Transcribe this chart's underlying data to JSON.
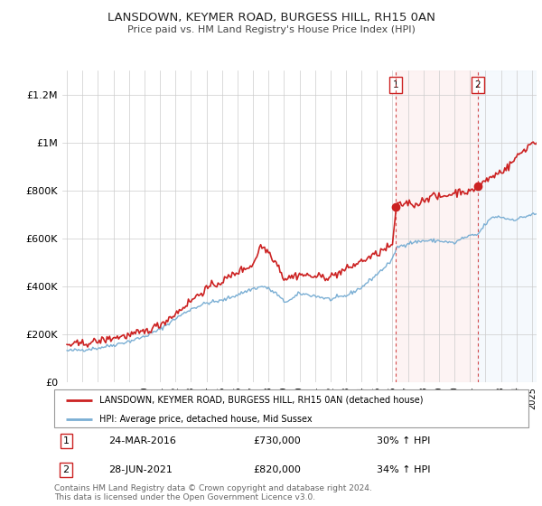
{
  "title": "LANSDOWN, KEYMER ROAD, BURGESS HILL, RH15 0AN",
  "subtitle": "Price paid vs. HM Land Registry's House Price Index (HPI)",
  "legend_line1": "LANSDOWN, KEYMER ROAD, BURGESS HILL, RH15 0AN (detached house)",
  "legend_line2": "HPI: Average price, detached house, Mid Sussex",
  "annotation1": {
    "label": "1",
    "date": "24-MAR-2016",
    "price": "£730,000",
    "pct": "30% ↑ HPI",
    "x_year": 2016.23,
    "y": 730000
  },
  "annotation2": {
    "label": "2",
    "date": "28-JUN-2021",
    "price": "£820,000",
    "pct": "34% ↑ HPI",
    "x_year": 2021.49,
    "y": 820000
  },
  "footer": "Contains HM Land Registry data © Crown copyright and database right 2024.\nThis data is licensed under the Open Government Licence v3.0.",
  "hpi_color": "#7bafd4",
  "price_color": "#cc2222",
  "vline_color": "#cc2222",
  "shade1_color": "#fce8e8",
  "shade2_color": "#e8f0fc",
  "ylim": [
    0,
    1300000
  ],
  "yticks": [
    0,
    200000,
    400000,
    600000,
    800000,
    1000000,
    1200000
  ],
  "ytick_labels": [
    "£0",
    "£200K",
    "£400K",
    "£600K",
    "£800K",
    "£1M",
    "£1.2M"
  ],
  "xlim_min": 1994.7,
  "xlim_max": 2025.3
}
